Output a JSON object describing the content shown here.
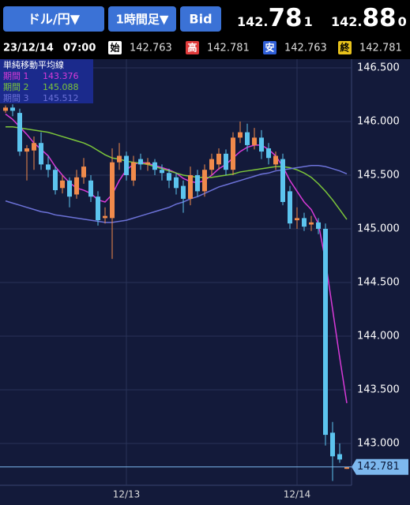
{
  "header": {
    "pair": "ドル/円▼",
    "timeframe": "1時間足▼",
    "side": "Bid",
    "bid": [
      "142.",
      "78",
      "1"
    ],
    "ask": [
      "142.",
      "88",
      "0"
    ],
    "date": "23/12/14",
    "time": "07:00",
    "ohlc_labels": [
      "始",
      "高",
      "安",
      "終"
    ]
  },
  "chart_data": {
    "type": "candlestick",
    "legend_title": "単純移動平均線",
    "categories": [
      null,
      null,
      null,
      null,
      null,
      null,
      null,
      null,
      null,
      null,
      null,
      null,
      null,
      null,
      null,
      null,
      null,
      "12/13",
      null,
      null,
      null,
      null,
      null,
      null,
      null,
      null,
      null,
      null,
      null,
      null,
      null,
      null,
      null,
      null,
      null,
      null,
      null,
      null,
      null,
      null,
      null,
      "12/14",
      null,
      null,
      null,
      null,
      null,
      null,
      null
    ],
    "open": [
      146.1,
      146.13,
      146.08,
      145.72,
      145.73,
      145.8,
      145.6,
      145.55,
      145.38,
      145.45,
      145.32,
      145.48,
      145.45,
      145.3,
      145.1,
      145.1,
      145.62,
      145.68,
      145.45,
      145.65,
      145.6,
      145.62,
      145.55,
      145.52,
      145.48,
      145.4,
      145.28,
      145.5,
      145.35,
      145.55,
      145.6,
      145.7,
      145.55,
      145.85,
      145.9,
      145.78,
      145.85,
      145.75,
      145.6,
      145.65,
      145.35,
      145.08,
      145.1,
      145.04,
      145.06,
      145.0,
      143.1,
      142.9,
      142.763
    ],
    "high": [
      146.15,
      146.16,
      146.12,
      145.78,
      145.86,
      145.9,
      145.68,
      145.58,
      145.5,
      145.48,
      145.55,
      145.66,
      145.5,
      145.35,
      145.2,
      145.75,
      145.8,
      145.72,
      145.68,
      145.7,
      145.66,
      145.65,
      145.6,
      145.56,
      145.52,
      145.45,
      145.58,
      145.55,
      145.6,
      145.7,
      145.75,
      145.74,
      145.9,
      146.0,
      145.98,
      145.94,
      145.92,
      145.8,
      145.72,
      145.7,
      145.4,
      145.2,
      145.15,
      145.12,
      145.1,
      145.05,
      143.2,
      143.0,
      142.781
    ],
    "low": [
      146.08,
      146.05,
      145.68,
      145.45,
      145.55,
      145.55,
      145.48,
      145.32,
      145.33,
      145.2,
      145.28,
      145.42,
      145.25,
      145.03,
      145.05,
      144.72,
      145.55,
      145.45,
      145.4,
      145.55,
      145.54,
      145.5,
      145.45,
      145.38,
      145.32,
      145.15,
      145.22,
      145.3,
      145.3,
      145.5,
      145.55,
      145.5,
      145.5,
      145.8,
      145.72,
      145.74,
      145.65,
      145.6,
      145.55,
      145.22,
      145.0,
      145.0,
      144.98,
      144.98,
      144.95,
      142.98,
      142.65,
      142.82,
      142.763
    ],
    "close": [
      146.13,
      146.1,
      145.72,
      145.75,
      145.8,
      145.6,
      145.55,
      145.36,
      145.45,
      145.3,
      145.48,
      145.58,
      145.3,
      145.08,
      145.12,
      145.62,
      145.68,
      145.5,
      145.62,
      145.6,
      145.62,
      145.55,
      145.52,
      145.45,
      145.38,
      145.28,
      145.5,
      145.35,
      145.55,
      145.65,
      145.7,
      145.55,
      145.85,
      145.9,
      145.78,
      145.85,
      145.72,
      145.66,
      145.68,
      145.25,
      145.05,
      145.1,
      145.02,
      145.06,
      145.0,
      143.08,
      142.88,
      142.85,
      142.781
    ],
    "up_color": "#f08a4b",
    "down_color": "#5cc4ee",
    "series": [
      {
        "name": "期間 1",
        "color": "#d83ad8",
        "values": [
          146.07,
          146.02,
          145.95,
          145.88,
          145.8,
          145.74,
          145.68,
          145.58,
          145.5,
          145.43,
          145.38,
          145.36,
          145.33,
          145.27,
          145.25,
          145.32,
          145.45,
          145.55,
          145.6,
          145.62,
          145.61,
          145.59,
          145.57,
          145.55,
          145.52,
          145.47,
          145.44,
          145.43,
          145.45,
          145.5,
          145.56,
          145.6,
          145.66,
          145.72,
          145.76,
          145.78,
          145.78,
          145.74,
          145.68,
          145.58,
          145.45,
          145.35,
          145.25,
          145.18,
          145.05,
          144.7,
          144.25,
          143.8,
          143.376
        ]
      },
      {
        "name": "期間 2",
        "color": "#7cc63a",
        "values": [
          145.95,
          145.95,
          145.94,
          145.93,
          145.92,
          145.91,
          145.9,
          145.88,
          145.86,
          145.84,
          145.82,
          145.8,
          145.77,
          145.73,
          145.69,
          145.66,
          145.65,
          145.63,
          145.62,
          145.61,
          145.6,
          145.58,
          145.56,
          145.54,
          145.52,
          145.5,
          145.49,
          145.48,
          145.48,
          145.48,
          145.49,
          145.5,
          145.51,
          145.53,
          145.54,
          145.55,
          145.56,
          145.57,
          145.58,
          145.58,
          145.57,
          145.55,
          145.52,
          145.48,
          145.42,
          145.35,
          145.27,
          145.18,
          145.088
        ]
      },
      {
        "name": "期間 3",
        "color": "#6c72d8",
        "values": [
          145.26,
          145.24,
          145.22,
          145.2,
          145.18,
          145.16,
          145.15,
          145.13,
          145.12,
          145.11,
          145.1,
          145.09,
          145.08,
          145.07,
          145.06,
          145.06,
          145.07,
          145.08,
          145.1,
          145.12,
          145.14,
          145.16,
          145.18,
          145.2,
          145.23,
          145.25,
          145.28,
          145.3,
          145.33,
          145.36,
          145.39,
          145.41,
          145.43,
          145.45,
          145.47,
          145.49,
          145.51,
          145.52,
          145.54,
          145.55,
          145.56,
          145.57,
          145.58,
          145.59,
          145.59,
          145.58,
          145.56,
          145.54,
          145.512
        ]
      }
    ],
    "ylim": [
      142.61,
      146.581
    ],
    "yticks": [
      {
        "value": 143.0,
        "label": "143.000"
      },
      {
        "value": 143.5,
        "label": "143.500"
      },
      {
        "value": 144.0,
        "label": "144.000"
      },
      {
        "value": 144.5,
        "label": "144.500"
      },
      {
        "value": 145.0,
        "label": "145.000"
      },
      {
        "value": 145.5,
        "label": "145.500"
      },
      {
        "value": 146.0,
        "label": "146.000"
      },
      {
        "value": 146.5,
        "label": "146.500"
      }
    ],
    "grid": true,
    "current_price_color": "#7db8ee"
  }
}
